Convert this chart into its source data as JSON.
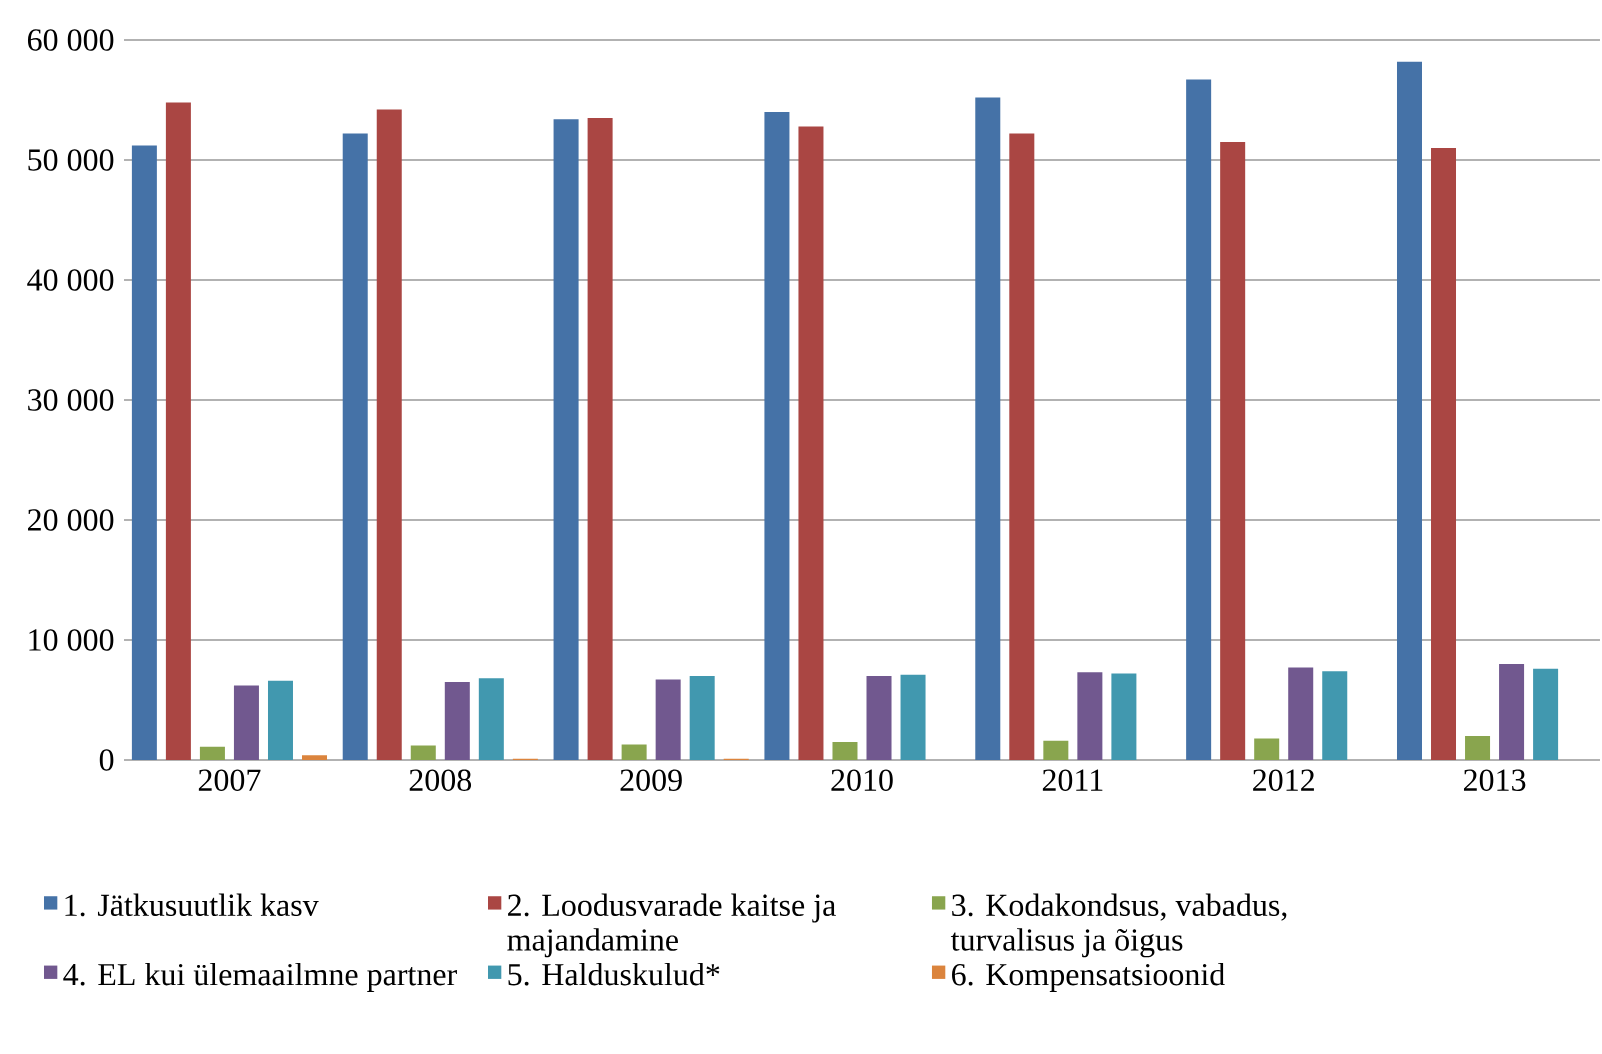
{
  "chart_data": {
    "type": "bar",
    "categories": [
      "2007",
      "2008",
      "2009",
      "2010",
      "2011",
      "2012",
      "2013"
    ],
    "series": [
      {
        "name": "1. Jätkusuutlik kasv",
        "color": "#4572a7",
        "values": [
          51200,
          52200,
          53400,
          54000,
          55200,
          56700,
          58200
        ]
      },
      {
        "name": "2. Loodusvarade kaitse ja majandamine",
        "color": "#aa4643",
        "values": [
          54800,
          54200,
          53500,
          52800,
          52200,
          51500,
          51000
        ]
      },
      {
        "name": "3. Kodakondsus, vabadus, turvalisus ja õigus",
        "color": "#89a54e",
        "values": [
          1100,
          1200,
          1300,
          1500,
          1600,
          1800,
          2000
        ]
      },
      {
        "name": "4. EL kui ülemaailmne partner",
        "color": "#71588f",
        "values": [
          6200,
          6500,
          6700,
          7000,
          7300,
          7700,
          8000
        ]
      },
      {
        "name": "5. Halduskulud*",
        "color": "#4198af",
        "values": [
          6600,
          6800,
          7000,
          7100,
          7200,
          7400,
          7600
        ]
      },
      {
        "name": "6. Kompensatsioonid",
        "color": "#db843d",
        "values": [
          400,
          100,
          100,
          null,
          null,
          null,
          null
        ]
      }
    ],
    "ylim": [
      0,
      60000
    ],
    "yticks": [
      {
        "value": 0,
        "label": "0"
      },
      {
        "value": 10000,
        "label": "10 000"
      },
      {
        "value": 20000,
        "label": "20 000"
      },
      {
        "value": 30000,
        "label": "30 000"
      },
      {
        "value": 40000,
        "label": "40 000"
      },
      {
        "value": 50000,
        "label": "50 000"
      },
      {
        "value": 60000,
        "label": "60 000"
      }
    ],
    "grid": "y",
    "legend": "bottom"
  }
}
